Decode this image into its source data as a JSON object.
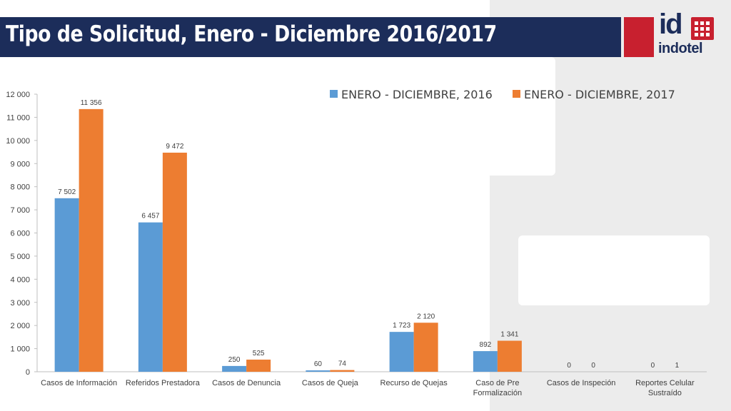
{
  "slide": {
    "title": "Tipo de Solicitud, Enero - Diciembre 2016/2017"
  },
  "logo": {
    "mark": "id",
    "word": "indotel"
  },
  "colors": {
    "header_bg": "#1c2d5a",
    "brand_red": "#c8202f",
    "panel_gray": "#ececec"
  },
  "chart_data": {
    "type": "bar",
    "title": "",
    "xlabel": "",
    "ylabel": "",
    "ylim": [
      0,
      12000
    ],
    "yticks": [
      0,
      1000,
      2000,
      3000,
      4000,
      5000,
      6000,
      7000,
      8000,
      9000,
      10000,
      11000,
      12000
    ],
    "ytick_labels": [
      "0",
      "1 000",
      "2 000",
      "3 000",
      "4 000",
      "5 000",
      "6 000",
      "7 000",
      "8 000",
      "9 000",
      "10 000",
      "11 000",
      "12 000"
    ],
    "grid": false,
    "legend_position": "top-right",
    "categories": [
      [
        "Casos de Información"
      ],
      [
        "Referidos Prestadora"
      ],
      [
        "Casos de Denuncia"
      ],
      [
        "Casos de Queja"
      ],
      [
        "Recurso de Quejas"
      ],
      [
        "Caso de Pre",
        "Formalización"
      ],
      [
        "Casos de Inspeción"
      ],
      [
        "Reportes Celular",
        "Sustraído"
      ]
    ],
    "series": [
      {
        "name": "ENERO - DICIEMBRE, 2016",
        "color": "#5b9bd5",
        "values": [
          7502,
          6457,
          250,
          60,
          1723,
          892,
          0,
          0
        ],
        "labels": [
          "7 502",
          "6 457",
          "250",
          "60",
          "1 723",
          "892",
          "0",
          "0"
        ]
      },
      {
        "name": "ENERO - DICIEMBRE, 2017",
        "color": "#ed7d31",
        "values": [
          11356,
          9472,
          525,
          74,
          2120,
          1341,
          0,
          1
        ],
        "labels": [
          "11 356",
          "9 472",
          "525",
          "74",
          "2 120",
          "1 341",
          "0",
          "1"
        ]
      }
    ]
  }
}
